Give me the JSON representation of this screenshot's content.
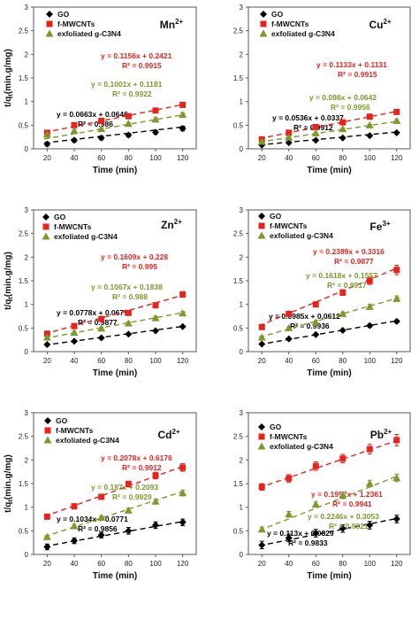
{
  "colors": {
    "go": "#000000",
    "mwcnt": "#e8231d",
    "c3n4": "#7b9a2a",
    "axis": "#595959"
  },
  "chart_data": [
    {
      "type": "scatter",
      "ion": "Mn",
      "charge": "2+",
      "x": [
        20,
        40,
        60,
        80,
        100,
        120
      ],
      "xlabel": "Time (min)",
      "ylabel": "t/q",
      "xlim": [
        10,
        130
      ],
      "ylim": [
        0,
        3
      ],
      "yticks": [
        0,
        0.5,
        1,
        1.5,
        2,
        2.5,
        3
      ],
      "legend": "top-left",
      "series": [
        {
          "name": "GO",
          "values": [
            0.1,
            0.18,
            0.23,
            0.29,
            0.35,
            0.43
          ],
          "errors": [
            0.04,
            0.04,
            0.04,
            0.04,
            0.04,
            0.05
          ],
          "fit": {
            "slope": 0.0663,
            "intercept": 0.0646,
            "eq": "y = 0.0663x + 0.0646",
            "r2": "R² = 0.986"
          }
        },
        {
          "name": "f-MWCNTs",
          "values": [
            0.34,
            0.5,
            0.59,
            0.69,
            0.81,
            0.93
          ],
          "errors": [
            0.03,
            0.03,
            0.03,
            0.03,
            0.04,
            0.05
          ],
          "fit": {
            "slope": 0.1156,
            "intercept": 0.2421,
            "eq": "y = 0.1156x + 0.2421",
            "r2": "R² = 0.9915"
          }
        },
        {
          "name": "exfoliated g-C3N4",
          "values": [
            0.3,
            0.38,
            0.42,
            0.53,
            0.62,
            0.72
          ],
          "errors": [
            0.03,
            0.03,
            0.03,
            0.03,
            0.04,
            0.04
          ],
          "fit": {
            "slope": 0.1001,
            "intercept": 0.1181,
            "eq": "y = 0.1001x + 0.1181",
            "r2": "R² = 0.9922"
          }
        }
      ]
    },
    {
      "type": "scatter",
      "ion": "Cu",
      "charge": "2+",
      "x": [
        20,
        40,
        60,
        80,
        100,
        120
      ],
      "xlabel": "Time (min)",
      "ylabel": "",
      "xlim": [
        10,
        130
      ],
      "ylim": [
        0,
        3
      ],
      "yticks": [
        0,
        0.5,
        1,
        1.5,
        2,
        2.5,
        3
      ],
      "legend": "top-left",
      "series": [
        {
          "name": "GO",
          "values": [
            0.08,
            0.13,
            0.18,
            0.23,
            0.28,
            0.34
          ],
          "errors": [
            0.02,
            0.02,
            0.02,
            0.02,
            0.02,
            0.02
          ],
          "fit": {
            "slope": 0.0536,
            "intercept": 0.0337,
            "eq": "y = 0.0536x + 0.0337",
            "r2": "R² = 0.9912"
          }
        },
        {
          "name": "f-MWCNTs",
          "values": [
            0.2,
            0.34,
            0.46,
            0.56,
            0.68,
            0.78
          ],
          "errors": [
            0.02,
            0.02,
            0.02,
            0.03,
            0.03,
            0.03
          ],
          "fit": {
            "slope": 0.1133,
            "intercept": 0.1131,
            "eq": "y = 0.1133x + 0.1131",
            "r2": "R² = 0.9915"
          }
        },
        {
          "name": "exfoliated g-C3N4",
          "values": [
            0.15,
            0.24,
            0.33,
            0.42,
            0.5,
            0.59
          ],
          "errors": [
            0.02,
            0.02,
            0.02,
            0.02,
            0.02,
            0.03
          ],
          "fit": {
            "slope": 0.086,
            "intercept": 0.0642,
            "eq": "y = 0.086x + 0.0642",
            "r2": "R² = 0.9956"
          }
        }
      ]
    },
    {
      "type": "scatter",
      "ion": "Zn",
      "charge": "2+",
      "x": [
        20,
        40,
        60,
        80,
        100,
        120
      ],
      "xlabel": "Time (min)",
      "ylabel": "t/q",
      "xlim": [
        10,
        130
      ],
      "ylim": [
        0,
        3
      ],
      "yticks": [
        0,
        0.5,
        1,
        1.5,
        2,
        2.5,
        3
      ],
      "legend": "top-left",
      "series": [
        {
          "name": "GO",
          "values": [
            0.15,
            0.22,
            0.29,
            0.37,
            0.44,
            0.53
          ],
          "errors": [
            0.02,
            0.02,
            0.02,
            0.02,
            0.02,
            0.02
          ],
          "fit": {
            "slope": 0.0778,
            "intercept": 0.0675,
            "eq": "y = 0.0778x + 0.0675",
            "r2": "R² = 0.9877"
          }
        },
        {
          "name": "f-MWCNTs",
          "values": [
            0.38,
            0.54,
            0.69,
            0.82,
            0.98,
            1.21
          ],
          "errors": [
            0.03,
            0.03,
            0.03,
            0.04,
            0.05,
            0.06
          ],
          "fit": {
            "slope": 0.1609,
            "intercept": 0.228,
            "eq": "y = 0.1609x + 0.228",
            "r2": "R² = 0.995"
          }
        },
        {
          "name": "exfoliated g-C3N4",
          "values": [
            0.3,
            0.4,
            0.49,
            0.6,
            0.71,
            0.81
          ],
          "errors": [
            0.03,
            0.03,
            0.03,
            0.03,
            0.04,
            0.04
          ],
          "fit": {
            "slope": 0.1067,
            "intercept": 0.1838,
            "eq": "y = 0.1067x + 0.1838",
            "r2": "R² = 0.988"
          }
        }
      ]
    },
    {
      "type": "scatter",
      "ion": "Fe",
      "charge": "3+",
      "x": [
        20,
        40,
        60,
        80,
        100,
        120
      ],
      "xlabel": "Time (min)",
      "ylabel": "",
      "xlim": [
        10,
        130
      ],
      "ylim": [
        0,
        3
      ],
      "yticks": [
        0,
        0.5,
        1,
        1.5,
        2,
        2.5,
        3
      ],
      "legend": "top-left",
      "series": [
        {
          "name": "GO",
          "values": [
            0.16,
            0.27,
            0.36,
            0.45,
            0.55,
            0.64
          ],
          "errors": [
            0.02,
            0.02,
            0.02,
            0.02,
            0.03,
            0.03
          ],
          "fit": {
            "slope": 0.0985,
            "intercept": 0.0612,
            "eq": "y = 0.0985x + 0.0612",
            "r2": "R² = 0.9936"
          }
        },
        {
          "name": "f-MWCNTs",
          "values": [
            0.52,
            0.8,
            1.0,
            1.25,
            1.5,
            1.73
          ],
          "errors": [
            0.03,
            0.04,
            0.05,
            0.06,
            0.08,
            0.1
          ],
          "fit": {
            "slope": 0.2389,
            "intercept": 0.3316,
            "eq": "y = 0.2389x + 0.3316",
            "r2": "R² = 0.9877"
          }
        },
        {
          "name": "exfoliated g-C3N4",
          "values": [
            0.3,
            0.5,
            0.62,
            0.8,
            0.95,
            1.12
          ],
          "errors": [
            0.03,
            0.03,
            0.04,
            0.04,
            0.05,
            0.06
          ],
          "fit": {
            "slope": 0.1618,
            "intercept": 0.1557,
            "eq": "y = 0.1618x + 0.1557",
            "r2": "R² = 0.9917"
          }
        }
      ]
    },
    {
      "type": "scatter",
      "ion": "Cd",
      "charge": "2+",
      "x": [
        20,
        40,
        60,
        80,
        100,
        120
      ],
      "xlabel": "Time (min)",
      "ylabel": "t/q",
      "xlim": [
        10,
        130
      ],
      "ylim": [
        0,
        3
      ],
      "yticks": [
        0,
        0.5,
        1,
        1.5,
        2,
        2.5,
        3
      ],
      "legend": "top-left",
      "series": [
        {
          "name": "GO",
          "values": [
            0.16,
            0.29,
            0.41,
            0.5,
            0.62,
            0.68
          ],
          "errors": [
            0.06,
            0.06,
            0.06,
            0.07,
            0.07,
            0.07
          ],
          "fit": {
            "slope": 0.1034,
            "intercept": 0.0771,
            "eq": "y = 0.1034x + 0.0771",
            "r2": "R² = 0.9856"
          }
        },
        {
          "name": "f-MWCNTs",
          "values": [
            0.8,
            1.02,
            1.22,
            1.49,
            1.67,
            1.84
          ],
          "errors": [
            0.03,
            0.04,
            0.05,
            0.06,
            0.07,
            0.08
          ],
          "fit": {
            "slope": 0.2078,
            "intercept": 0.6176,
            "eq": "y = 0.2078x + 0.6176",
            "r2": "R² = 0.9912"
          }
        },
        {
          "name": "exfoliated g-C3N4",
          "values": [
            0.37,
            0.6,
            0.78,
            0.93,
            1.12,
            1.3
          ],
          "errors": [
            0.03,
            0.04,
            0.04,
            0.05,
            0.05,
            0.06
          ],
          "fit": {
            "slope": 0.187,
            "intercept": 0.2093,
            "eq": "y = 0.187x + 0.2093",
            "r2": "R² = 0.9929"
          }
        }
      ]
    },
    {
      "type": "scatter",
      "ion": "Pb",
      "charge": "2+",
      "x": [
        20,
        40,
        60,
        80,
        100,
        120
      ],
      "xlabel": "Time (min)",
      "ylabel": "",
      "xlim": [
        10,
        130
      ],
      "ylim": [
        0,
        3
      ],
      "yticks": [
        0,
        0.5,
        1,
        1.5,
        2,
        2.5,
        3
      ],
      "legend": "top-left",
      "series": [
        {
          "name": "GO",
          "values": [
            0.2,
            0.35,
            0.45,
            0.55,
            0.62,
            0.75
          ],
          "errors": [
            0.08,
            0.08,
            0.08,
            0.08,
            0.08,
            0.08
          ],
          "fit": {
            "slope": 0.113,
            "intercept": 0.0829,
            "eq": "y = 0.113x + 0.0829",
            "r2": "R² = 0.9833"
          }
        },
        {
          "name": "f-MWCNTs",
          "values": [
            1.43,
            1.61,
            1.87,
            2.03,
            2.23,
            2.42
          ],
          "errors": [
            0.07,
            0.08,
            0.09,
            0.09,
            0.1,
            0.12
          ],
          "fit": {
            "slope": 0.1957,
            "intercept": 1.2361,
            "eq": "y = 0.1957x + 1.2361",
            "r2": "R² = 0.9941"
          }
        },
        {
          "name": "exfoliated g-C3N4",
          "values": [
            0.53,
            0.85,
            1.06,
            1.25,
            1.5,
            1.62
          ],
          "errors": [
            0.05,
            0.06,
            0.06,
            0.07,
            0.07,
            0.08
          ],
          "fit": {
            "slope": 0.2246,
            "intercept": 0.3053,
            "eq": "y = 0.2246x + 0.3053",
            "r2": "R² = 0.9821"
          }
        }
      ]
    }
  ]
}
